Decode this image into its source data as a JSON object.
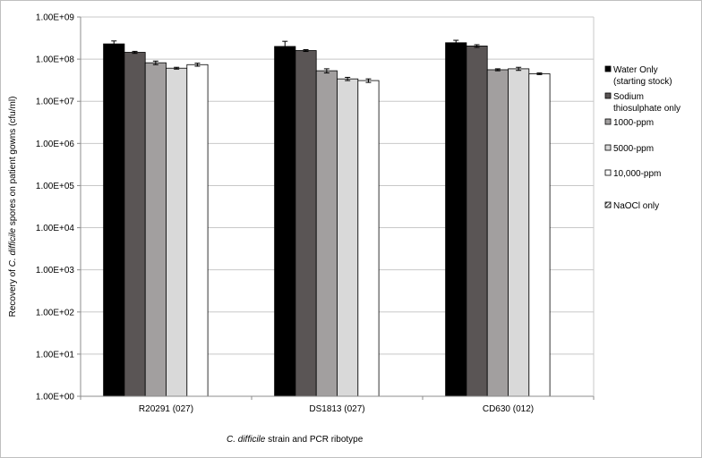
{
  "chart_data": {
    "type": "bar",
    "yscale": "log",
    "ylim": [
      1,
      1000000000
    ],
    "yticks": [
      "1.00E+00",
      "1.00E+01",
      "1.00E+02",
      "1.00E+03",
      "1.00E+04",
      "1.00E+05",
      "1.00E+06",
      "1.00E+07",
      "1.00E+08",
      "1.00E+09"
    ],
    "categories": [
      "R20291 (027)",
      "DS1813 (027)",
      "CD630 (012)"
    ],
    "ylabel_prefix": "Recovery of ",
    "ylabel_italic": "C. difficile",
    "ylabel_suffix": " spores on patient gowns (cfu/ml)",
    "xlabel_italic": "C. difficile",
    "xlabel_suffix": " strain and PCR ribotype",
    "grid": true,
    "legend_position": "right",
    "series": [
      {
        "name": "Water Only (starting stock)",
        "legend_lines": [
          "Water Only",
          "(starting stock)"
        ],
        "color": "#000000",
        "values": [
          230000000,
          200000000,
          245000000
        ],
        "errors": [
          40000000,
          65000000,
          35000000
        ]
      },
      {
        "name": "Sodium thiosulphate only",
        "legend_lines": [
          "Sodium",
          "thiosulphate only"
        ],
        "color": "#5a5555",
        "values": [
          145000000,
          160000000,
          205000000
        ],
        "errors": [
          8000000,
          8000000,
          15000000
        ]
      },
      {
        "name": "1000-ppm",
        "legend_lines": [
          "1000-ppm"
        ],
        "color": "#a29f9f",
        "values": [
          82000000,
          53000000,
          56000000
        ],
        "errors": [
          8000000,
          6000000,
          3000000
        ]
      },
      {
        "name": "5000-ppm",
        "legend_lines": [
          "5000-ppm"
        ],
        "color": "#d9d9d9",
        "values": [
          61000000,
          34000000,
          59000000
        ],
        "errors": [
          3000000,
          3000000,
          5000000
        ]
      },
      {
        "name": "10,000-ppm",
        "legend_lines": [
          "10,000-ppm"
        ],
        "color": "#ffffff",
        "values": [
          74000000,
          31000000,
          45000000
        ],
        "errors": [
          6000000,
          3000000,
          2000000
        ]
      },
      {
        "name": "NaOCl only",
        "legend_lines": [
          "NaOCl only"
        ],
        "color": "#ffffff",
        "hatched": true,
        "values": [
          null,
          null,
          null
        ],
        "errors": [
          null,
          null,
          null
        ]
      }
    ]
  }
}
